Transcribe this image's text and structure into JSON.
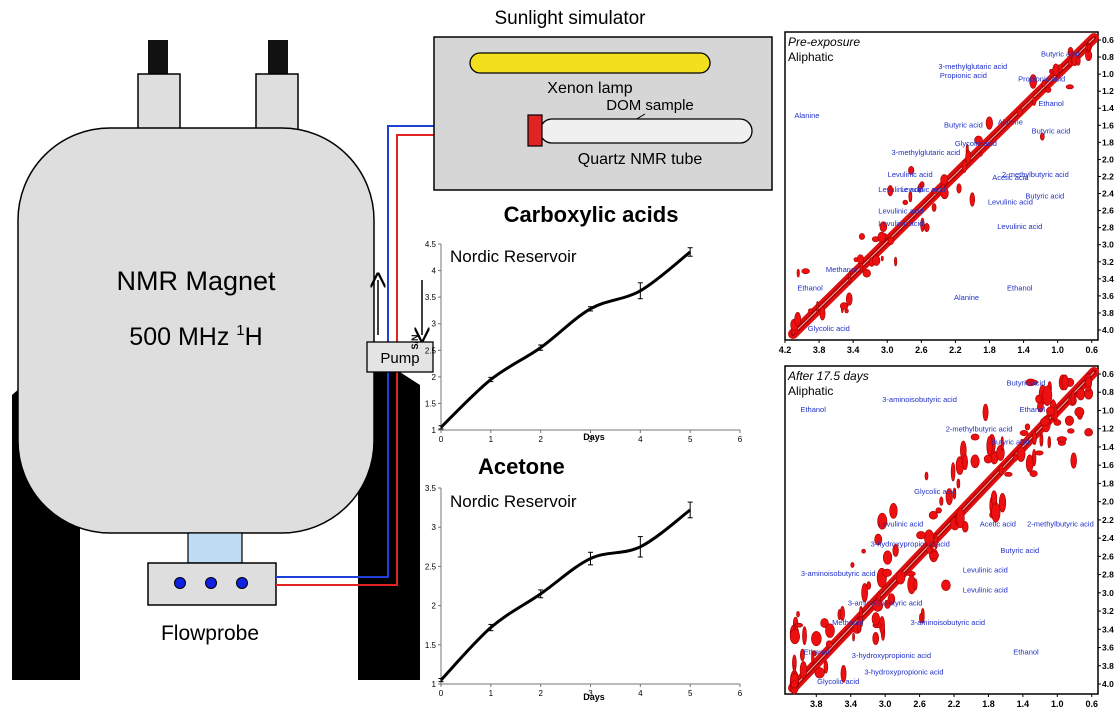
{
  "apparatus": {
    "magnet_line1": "NMR Magnet",
    "magnet_line2_prefix": "500 MHz ",
    "magnet_line2_sup": "1",
    "magnet_line2_suffix": "H",
    "flowprobe": "Flowprobe",
    "pump": "Pump",
    "simulator_title": "Sunlight simulator",
    "lamp": "Xenon lamp",
    "dom_sample": "DOM sample",
    "tube": "Quartz NMR tube",
    "colors": {
      "inflow": "#1f3fd9",
      "outflow": "#e02424",
      "lamp": "#f2e01e",
      "box": "#d6d6d6"
    }
  },
  "chart_data": [
    {
      "type": "line",
      "title": "Carboxylic acids",
      "inner_label": "Nordic Reservoir",
      "xlabel": "Days",
      "ylabel": "S/N",
      "xlim": [
        0,
        6
      ],
      "ylim": [
        1,
        4.5
      ],
      "xticks": [
        "0",
        "1",
        "2",
        "3",
        "4",
        "5",
        "6"
      ],
      "yticks": [
        "1",
        "1.5",
        "2",
        "2.5",
        "3",
        "3.5",
        "4",
        "4.5"
      ],
      "x": [
        0,
        1,
        2,
        3,
        4,
        5
      ],
      "y": [
        1.05,
        1.95,
        2.55,
        3.28,
        3.62,
        4.35
      ],
      "err": [
        0.03,
        0.04,
        0.05,
        0.04,
        0.15,
        0.08
      ]
    },
    {
      "type": "line",
      "title": "Acetone",
      "inner_label": "Nordic Reservoir",
      "xlabel": "Days",
      "ylabel": "S/N",
      "xlim": [
        0,
        6
      ],
      "ylim": [
        1,
        3.5
      ],
      "xticks": [
        "0",
        "1",
        "2",
        "3",
        "4",
        "5",
        "6"
      ],
      "yticks": [
        "1",
        "1.5",
        "2",
        "2.5",
        "3",
        "3.5"
      ],
      "x": [
        0,
        1,
        2,
        3,
        4,
        5
      ],
      "y": [
        1.05,
        1.72,
        2.15,
        2.6,
        2.75,
        3.22
      ],
      "err": [
        0.02,
        0.04,
        0.05,
        0.08,
        0.13,
        0.1
      ]
    }
  ],
  "spectra": [
    {
      "title": "Pre-exposure",
      "subtitle": "Aliphatic",
      "xticks": [
        "4.2",
        "3.8",
        "3.4",
        "3.0",
        "2.6",
        "2.2",
        "1.8",
        "1.4",
        "1.0",
        "0.6"
      ],
      "yticks": [
        "0.6",
        "0.8",
        "1.0",
        "1.2",
        "1.4",
        "1.6",
        "1.8",
        "2.0",
        "2.2",
        "2.4",
        "2.6",
        "2.8",
        "3.0",
        "3.2",
        "3.4",
        "3.6",
        "3.8",
        "4.0"
      ],
      "annotations": [
        "Butyric acid",
        "3-methylglutaric acid",
        "Propionic acid",
        "Propionic acid",
        "Ethanol",
        "Alanine",
        "Butyric acid",
        "Alanine",
        "Glycolic acid",
        "Butyric acid",
        "3-methylglutaric acid",
        "Levulinic acid",
        "Acetic acid",
        "2-methylbutyric acid",
        "Levulinic acid",
        "Levulinic acid",
        "Butyric acid",
        "Levulinic acid",
        "Levulinic acid",
        "Levulinic acid",
        "Levulinic acid",
        "Methanol",
        "Ethanol",
        "Ethanol",
        "Alanine",
        "Glycolic acid"
      ]
    },
    {
      "title": "After 17.5 days",
      "subtitle": "Aliphatic",
      "xticks": [
        "3.8",
        "3.4",
        "3.0",
        "2.6",
        "2.2",
        "1.8",
        "1.4",
        "1.0",
        "0.6"
      ],
      "yticks": [
        "0.6",
        "0.8",
        "1.0",
        "1.2",
        "1.4",
        "1.6",
        "1.8",
        "2.0",
        "2.2",
        "2.4",
        "2.6",
        "2.8",
        "3.0",
        "3.2",
        "3.4",
        "3.6",
        "3.8",
        "4.0"
      ],
      "annotations": [
        "Butyric acid",
        "3-aminoisobutyric acid",
        "Ethanol",
        "Ethanol",
        "2-methylbutyric acid",
        "Butyric acid",
        "Glycolic acid",
        "Levulinic acid",
        "Acetic acid",
        "2-methylbutyric acid",
        "3-hydroxypropionic acid",
        "Butyric acid",
        "3-aminoisobutyric acid",
        "Levulinic acid",
        "Levulinic acid",
        "3-aminoisobutyric acid",
        "Methanol",
        "3-aminoisobutyric acid",
        "Ethanol",
        "3-hydroxypropionic acid",
        "Ethanol",
        "3-hydroxypropionic acid",
        "Glycolic acid"
      ]
    }
  ]
}
